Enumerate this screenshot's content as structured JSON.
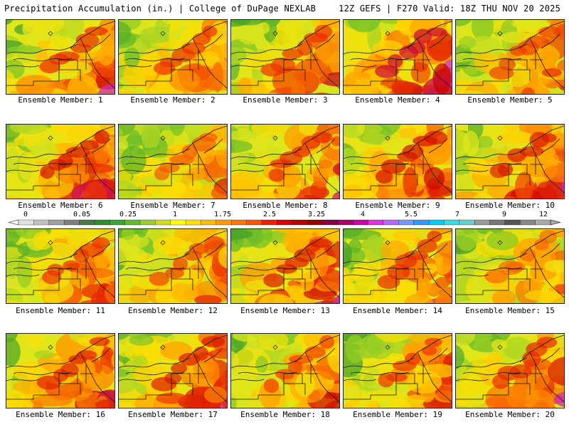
{
  "header": {
    "title": "Precipitation Accumulation (in.) | College of DuPage NEXLAB",
    "run_info": "12Z GEFS | F270 Valid: 18Z THU NOV 20 2025"
  },
  "members": [
    {
      "label": "Ensemble Member: 1",
      "intensity": 0.55
    },
    {
      "label": "Ensemble Member: 2",
      "intensity": 0.5
    },
    {
      "label": "Ensemble Member: 3",
      "intensity": 0.5
    },
    {
      "label": "Ensemble Member: 4",
      "intensity": 0.85
    },
    {
      "label": "Ensemble Member: 5",
      "intensity": 0.45
    },
    {
      "label": "Ensemble Member: 6",
      "intensity": 0.7
    },
    {
      "label": "Ensemble Member: 7",
      "intensity": 0.35
    },
    {
      "label": "Ensemble Member: 8",
      "intensity": 0.55
    },
    {
      "label": "Ensemble Member: 9",
      "intensity": 0.7
    },
    {
      "label": "Ensemble Member: 10",
      "intensity": 0.65
    },
    {
      "label": "Ensemble Member: 11",
      "intensity": 0.5
    },
    {
      "label": "Ensemble Member: 12",
      "intensity": 0.45
    },
    {
      "label": "Ensemble Member: 13",
      "intensity": 0.65
    },
    {
      "label": "Ensemble Member: 14",
      "intensity": 0.55
    },
    {
      "label": "Ensemble Member: 15",
      "intensity": 0.3
    },
    {
      "label": "Ensemble Member: 16",
      "intensity": 0.6
    },
    {
      "label": "Ensemble Member: 17",
      "intensity": 0.65
    },
    {
      "label": "Ensemble Member: 18",
      "intensity": 0.45
    },
    {
      "label": "Ensemble Member: 19",
      "intensity": 0.5
    },
    {
      "label": "Ensemble Member: 20",
      "intensity": 0.55
    }
  ],
  "colorbar": {
    "tick_labels": [
      "0",
      "0.05",
      "0.25",
      "1",
      "1.75",
      "2.5",
      "3.25",
      "4",
      "5.5",
      "7",
      "9",
      "12"
    ],
    "colors": [
      "#e0e0e0",
      "#c0c0c0",
      "#a0a0a0",
      "#808080",
      "#4a7a4a",
      "#2f8f2f",
      "#3aa63a",
      "#66b933",
      "#99cc33",
      "#ccdd22",
      "#ffff00",
      "#ffdd00",
      "#ffbb00",
      "#ff9900",
      "#ff7700",
      "#ff5500",
      "#ee2200",
      "#dd0000",
      "#bb0000",
      "#990000",
      "#880044",
      "#aa0066",
      "#cc00aa",
      "#dd33dd",
      "#bb66ff",
      "#7799ff",
      "#3399ff",
      "#00ccff",
      "#33dddd",
      "#66cccc",
      "#999999",
      "#777777",
      "#555555",
      "#888888",
      "#aaaaaa"
    ]
  }
}
